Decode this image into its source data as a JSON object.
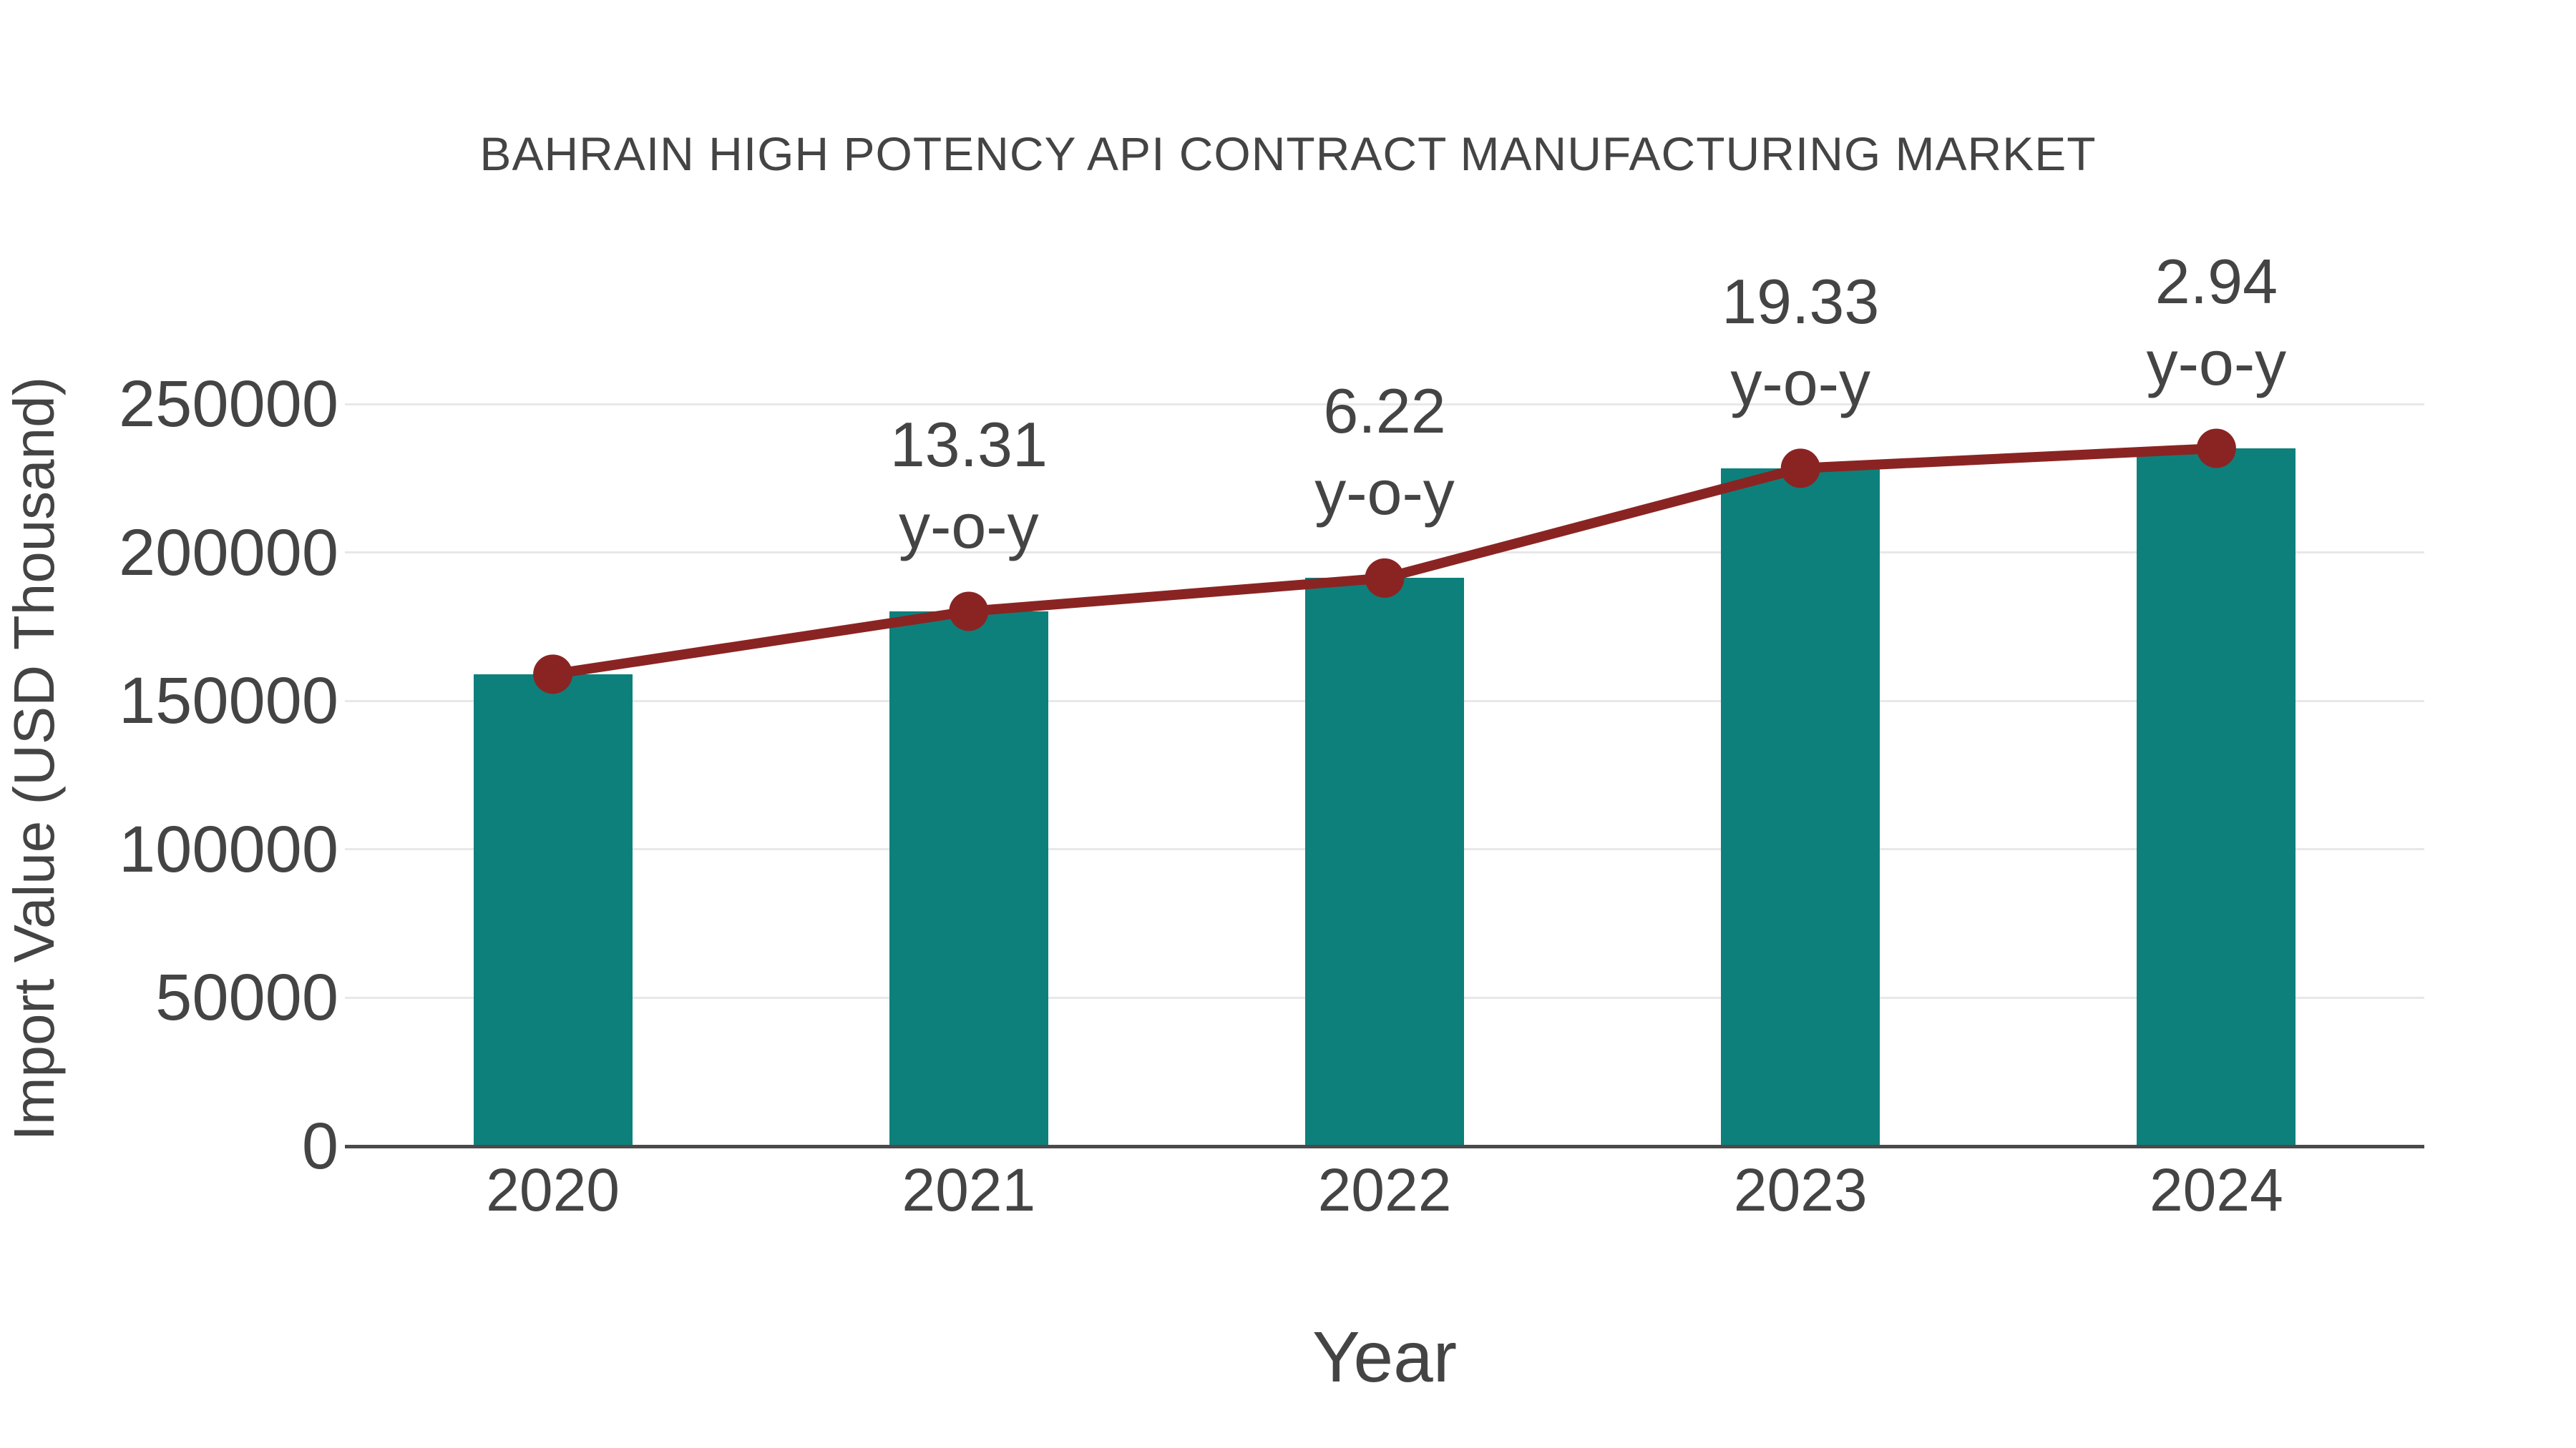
{
  "figure": {
    "background": "#ffffff"
  },
  "chart_data": {
    "type": "bar",
    "line_overlay": true,
    "title": "BAHRAIN HIGH POTENCY API CONTRACT MANUFACTURING MARKET",
    "xlabel": "Year",
    "ylabel": "Import Value (USD Thousand)",
    "categories": [
      "2020",
      "2021",
      "2022",
      "2023",
      "2024"
    ],
    "values": [
      159000,
      180163,
      191370,
      228364,
      235078
    ],
    "yoy_growth_pct": [
      null,
      13.31,
      6.22,
      19.33,
      2.94
    ],
    "annotation_suffix": "y-o-y",
    "ylim": [
      0,
      250000
    ],
    "yticks": [
      0,
      50000,
      100000,
      150000,
      200000,
      250000
    ],
    "grid": "horizontal-light",
    "legend_position": "none",
    "bar_color": "#0e807b",
    "line_color": "#8a2423",
    "marker_color": "#8a2423",
    "text_color": "#444444",
    "grid_color": "#e8e8e8",
    "axis_line_color": "#4a4a4a"
  }
}
